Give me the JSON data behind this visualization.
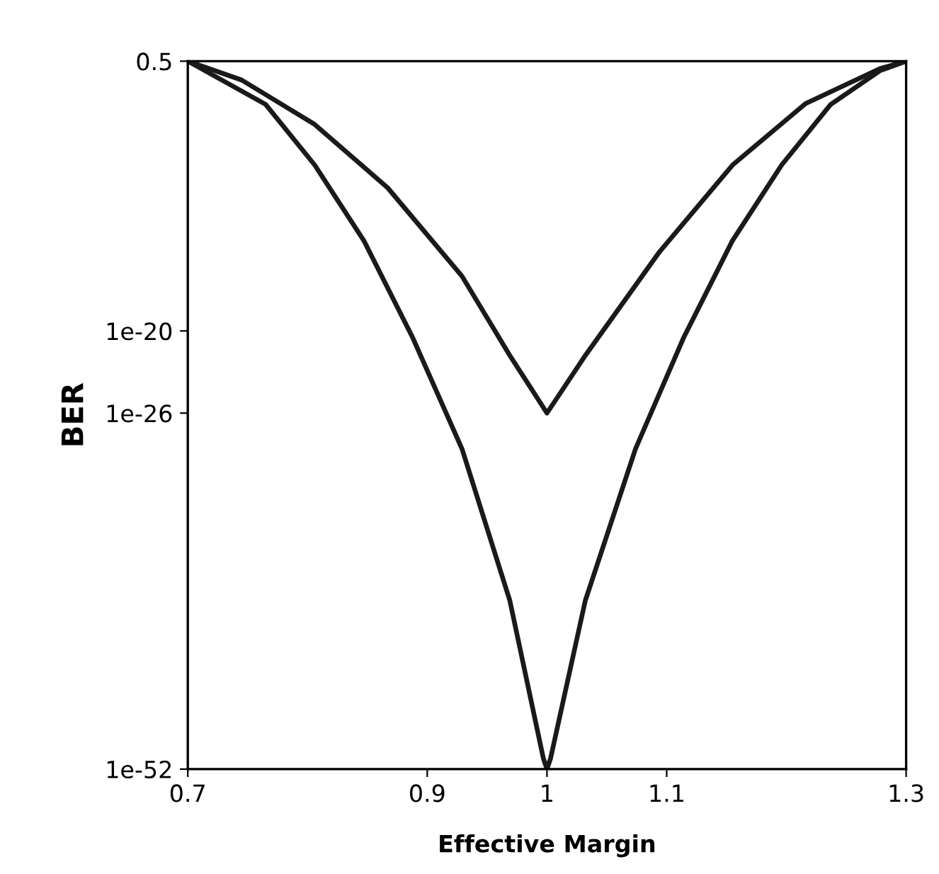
{
  "chart_data": {
    "type": "line",
    "xlabel": "Effective Margin",
    "ylabel": "BER",
    "log": "y",
    "xlim": [
      0.7,
      1.3
    ],
    "xticks": [
      0.7,
      0.9,
      1,
      1.1,
      1.3
    ],
    "ylim": [
      1e-52,
      0.5
    ],
    "yticks": [
      {
        "value": 0.5,
        "label": "0.5"
      },
      {
        "value": 1e-20,
        "label": "1e-20"
      },
      {
        "value": 1e-26,
        "label": "1e-26"
      },
      {
        "value": 1e-52,
        "label": "1e-52"
      }
    ],
    "marker": "none",
    "line_style": "solid",
    "series": [
      {
        "color": "#1a1a1a",
        "x": [
          0.7,
          0.745,
          0.806,
          0.867,
          0.929,
          0.969,
          1.0,
          1.032,
          1.094,
          1.155,
          1.216,
          1.278,
          1.3
        ],
        "values": [
          0.5,
          0.021,
          1.2e-05,
          2.8e-10,
          1e-16,
          1.6e-22,
          1e-26,
          1.6e-22,
          6e-15,
          1.3e-08,
          0.0004,
          0.14,
          0.5
        ]
      },
      {
        "color": "#1a1a1a",
        "x": [
          0.7,
          0.765,
          0.806,
          0.847,
          0.888,
          0.929,
          0.969,
          0.997,
          1.0,
          1.003,
          1.032,
          1.074,
          1.114,
          1.155,
          1.196,
          1.237,
          1.278,
          1.3
        ],
        "values": [
          0.5,
          0.00035,
          1.3e-08,
          4e-14,
          3e-21,
          2.5e-29,
          2e-40,
          6e-52,
          1e-52,
          6e-52,
          2e-40,
          2.5e-29,
          3e-21,
          4e-14,
          1.3e-08,
          0.00035,
          0.1,
          0.5
        ]
      }
    ]
  }
}
